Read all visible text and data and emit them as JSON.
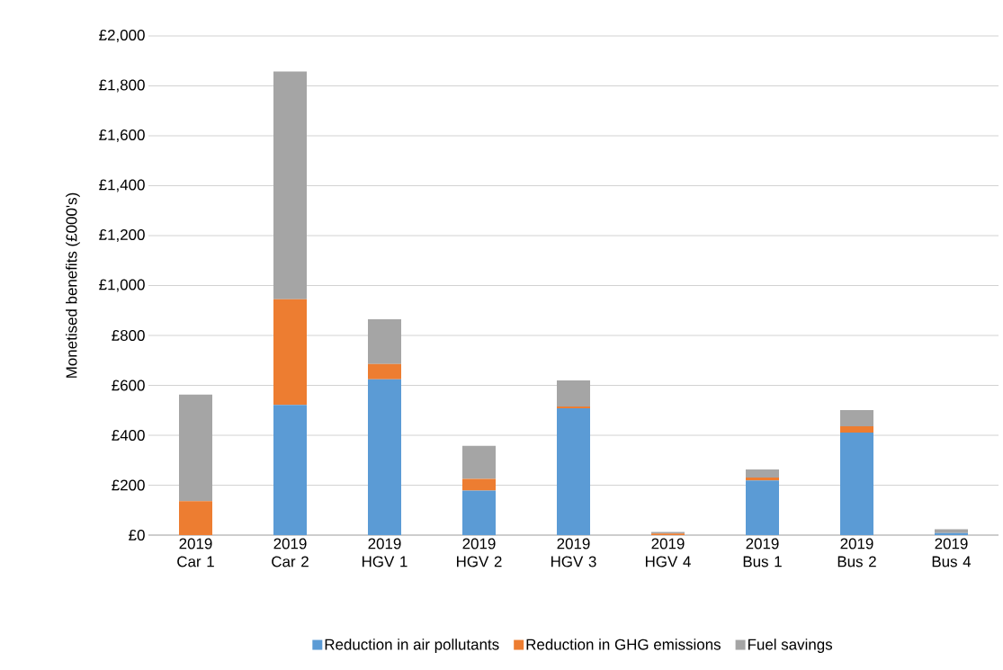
{
  "chart_data": {
    "type": "bar",
    "stacked": true,
    "ylabel": "Monetised benefits (£000's)",
    "categories": [
      "2019 Car 1",
      "2019 Car 2",
      "2019 HGV 1",
      "2019 HGV 2",
      "2019 HGV 3",
      "2019 HGV 4",
      "2019 Bus 1",
      "2019 Bus 2",
      "2019 Bus 4"
    ],
    "series": [
      {
        "name": "Reduction in air pollutants",
        "color": "#5b9bd5",
        "values": [
          0,
          522,
          624,
          178,
          508,
          0,
          219,
          411,
          8
        ]
      },
      {
        "name": "Reduction in GHG emissions",
        "color": "#ed7d31",
        "values": [
          136,
          423,
          62,
          47,
          7,
          6,
          12,
          25,
          0
        ]
      },
      {
        "name": "Fuel savings",
        "color": "#a5a5a5",
        "values": [
          427,
          913,
          179,
          133,
          105,
          7,
          32,
          65,
          15
        ]
      }
    ],
    "ylim": [
      0,
      2000
    ],
    "yticks": [
      {
        "value": 0,
        "label": "£0"
      },
      {
        "value": 200,
        "label": "£200"
      },
      {
        "value": 400,
        "label": "£400"
      },
      {
        "value": 600,
        "label": "£600"
      },
      {
        "value": 800,
        "label": "£800"
      },
      {
        "value": 1000,
        "label": "£1,000"
      },
      {
        "value": 1200,
        "label": "£1,200"
      },
      {
        "value": 1400,
        "label": "£1,400"
      },
      {
        "value": 1600,
        "label": "£1,600"
      },
      {
        "value": 1800,
        "label": "£1,800"
      },
      {
        "value": 2000,
        "label": "£2,000"
      }
    ],
    "grid": "y",
    "legend": "bottom"
  }
}
